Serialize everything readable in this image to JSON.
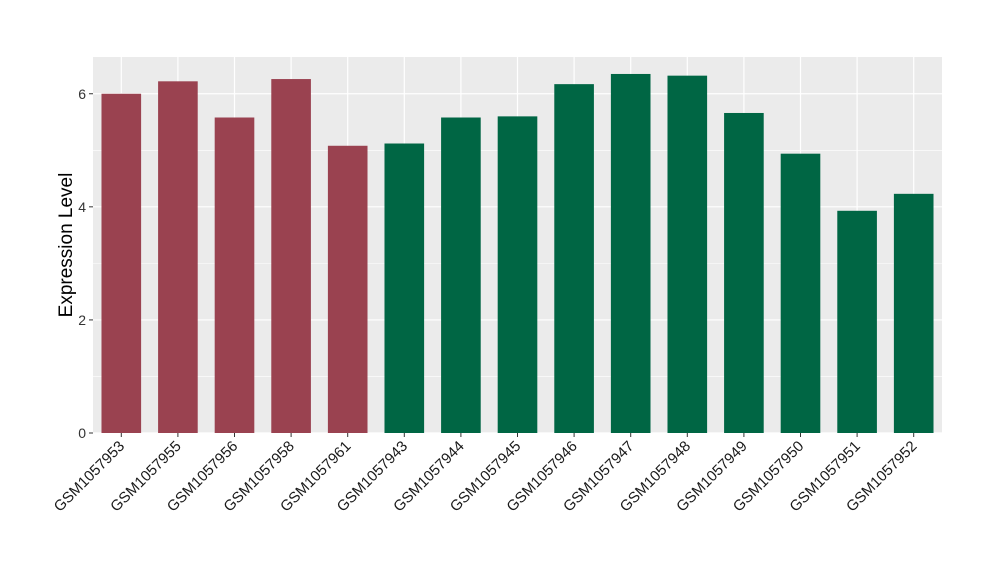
{
  "chart_data": {
    "type": "bar",
    "title": "",
    "xlabel": "",
    "ylabel": "Expression Level",
    "ylim": [
      0,
      6.65
    ],
    "yticks": [
      0,
      2,
      4,
      6
    ],
    "grid": true,
    "panel_background": "#ebebeb",
    "grid_color": "#ffffff",
    "categories": [
      "GSM1057953",
      "GSM1057955",
      "GSM1057956",
      "GSM1057958",
      "GSM1057961",
      "GSM1057943",
      "GSM1057944",
      "GSM1057945",
      "GSM1057946",
      "GSM1057947",
      "GSM1057948",
      "GSM1057949",
      "GSM1057950",
      "GSM1057951",
      "GSM1057952"
    ],
    "values": [
      6.0,
      6.22,
      5.58,
      6.26,
      5.08,
      5.12,
      5.58,
      5.6,
      6.17,
      6.35,
      6.32,
      5.66,
      4.94,
      3.93,
      4.23
    ],
    "groups": [
      0,
      0,
      0,
      0,
      0,
      1,
      1,
      1,
      1,
      1,
      1,
      1,
      1,
      1,
      1
    ],
    "group_colors": [
      "#9a4250",
      "#006644"
    ]
  }
}
